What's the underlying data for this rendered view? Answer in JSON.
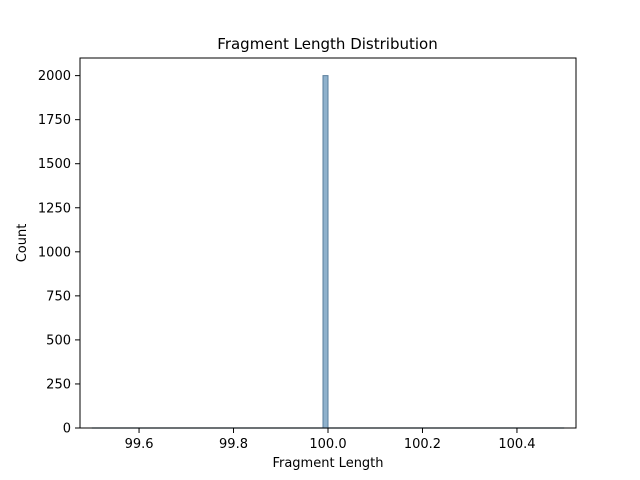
{
  "chart_data": {
    "type": "bar",
    "title": "Fragment Length Distribution",
    "xlabel": "Fragment Length",
    "ylabel": "Count",
    "xlim": [
      99.475,
      100.525
    ],
    "ylim": [
      0,
      2100
    ],
    "xticks": [
      99.6,
      99.8,
      100.0,
      100.2,
      100.4
    ],
    "xtick_labels": [
      "99.6",
      "99.8",
      "100.0",
      "100.2",
      "100.4"
    ],
    "yticks": [
      0,
      250,
      500,
      750,
      1000,
      1250,
      1500,
      1750,
      2000
    ],
    "ytick_labels": [
      "0",
      "250",
      "500",
      "750",
      "1000",
      "1250",
      "1500",
      "1750",
      "2000"
    ],
    "bins": {
      "start": 99.5,
      "end": 100.5,
      "count": 100
    },
    "bars": [
      {
        "x0": 99.99,
        "x1": 100.0,
        "count": 2000
      }
    ],
    "grid": false,
    "legend": "none",
    "colors": {
      "bar_fill": "#8fb1cc",
      "bar_edge": "#5a7e9c",
      "empty_bin_edge": "#6a8aa3"
    }
  }
}
